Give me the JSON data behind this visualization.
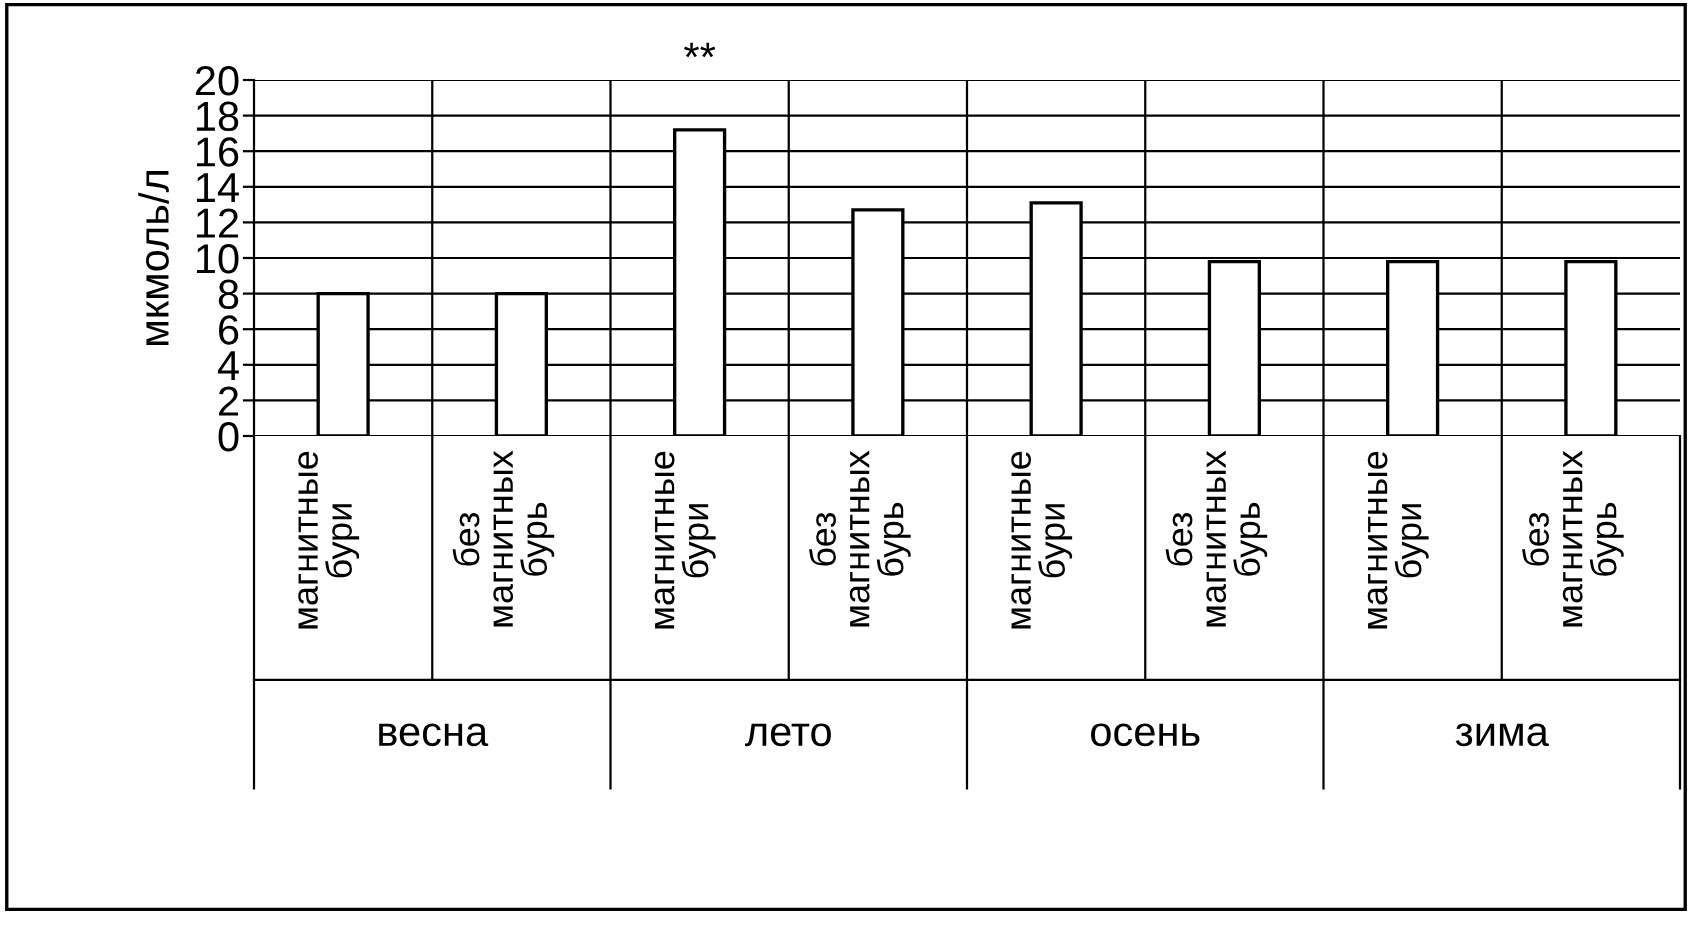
{
  "chart_data": {
    "type": "bar",
    "ylabel": "мкмоль/л",
    "categories": [
      "магнитные бури",
      "без магнитных бурь",
      "магнитные бури",
      "без магнитных бурь",
      "магнитные бури",
      "без магнитных бурь",
      "магнитные бури",
      "без магнитных бурь"
    ],
    "values": [
      8,
      8,
      17.2,
      12.7,
      13.1,
      9.8,
      9.8,
      9.8
    ],
    "color": "#ffffff",
    "ylim": [
      0,
      20
    ],
    "yticks": [
      0,
      2,
      4,
      6,
      8,
      10,
      12,
      14,
      16,
      18,
      20
    ],
    "grid": true,
    "annotations": [
      "**",
      "весна",
      "лето",
      "осень",
      "зима"
    ]
  }
}
